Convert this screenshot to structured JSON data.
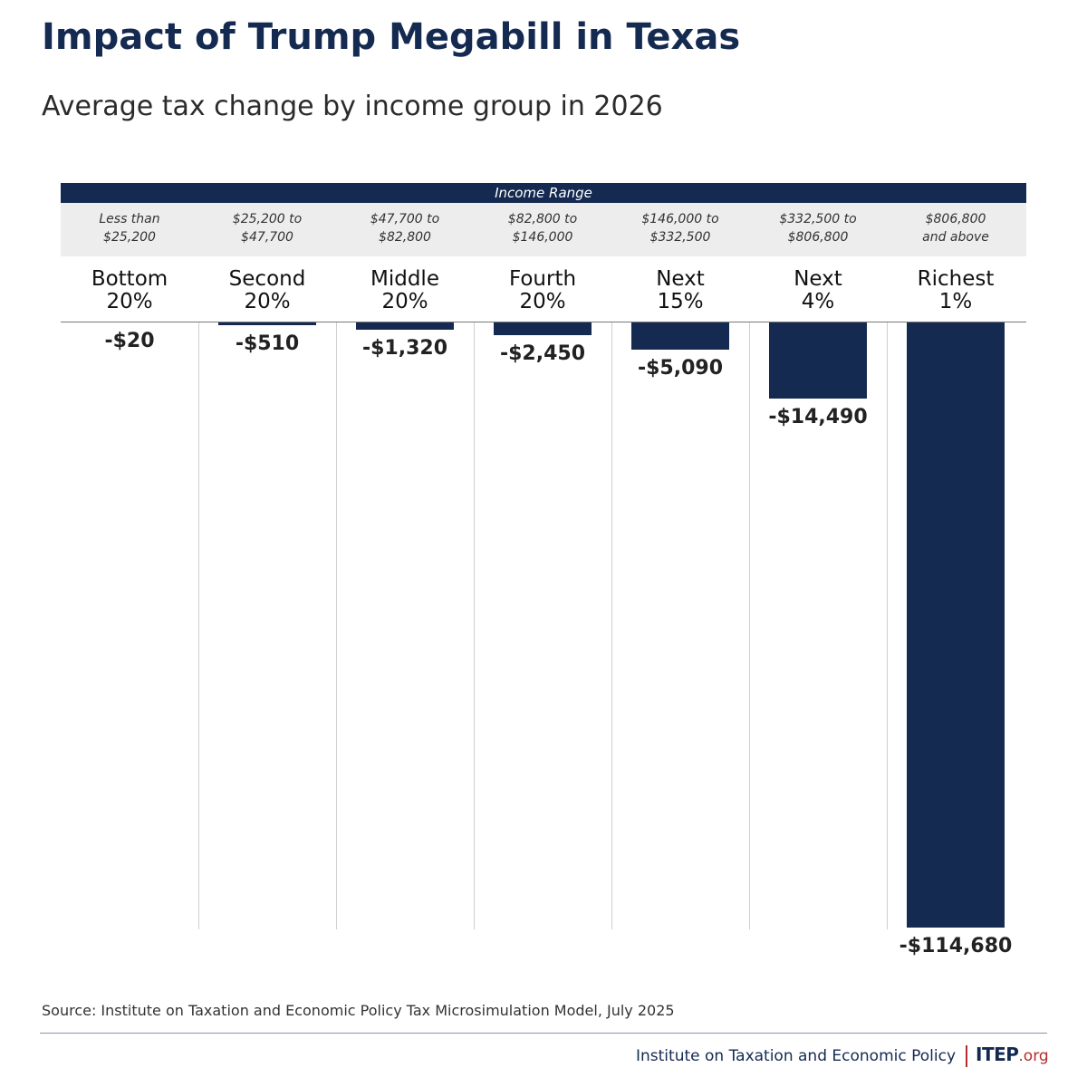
{
  "title": "Impact of Trump Megabill in Texas",
  "subtitle": "Average tax change by income group in 2026",
  "range_header": "Income Range",
  "chart_data": {
    "type": "bar",
    "title": "Impact of Trump Megabill in Texas",
    "subtitle": "Average tax change by income group in 2026",
    "categories": [
      [
        "Bottom",
        "20%"
      ],
      [
        "Second",
        "20%"
      ],
      [
        "Middle",
        "20%"
      ],
      [
        "Fourth",
        "20%"
      ],
      [
        "Next",
        "15%"
      ],
      [
        "Next",
        "4%"
      ],
      [
        "Richest",
        "1%"
      ]
    ],
    "income_ranges": [
      [
        "Less than",
        "$25,200"
      ],
      [
        "$25,200 to",
        "$47,700"
      ],
      [
        "$47,700 to",
        "$82,800"
      ],
      [
        "$82,800 to",
        "$146,000"
      ],
      [
        "$146,000 to",
        "$332,500"
      ],
      [
        "$332,500 to",
        "$806,800"
      ],
      [
        "$806,800",
        "and above"
      ]
    ],
    "values": [
      -20,
      -510,
      -1320,
      -2450,
      -5090,
      -14490,
      -114680
    ],
    "value_labels": [
      "-$20",
      "-$510",
      "-$1,320",
      "-$2,450",
      "-$5,090",
      "-$14,490",
      "-$114,680"
    ],
    "ylim": [
      -114680,
      0
    ],
    "grid": false,
    "orientation": "downward from zero baseline"
  },
  "source": "Source: Institute on Taxation and Economic Policy Tax Microsimulation Model, July 2025",
  "footer": {
    "org_name": "Institute on Taxation and Economic Policy",
    "logo_main": "ITEP",
    "logo_tld": ".org"
  },
  "colors": {
    "bar": "#142a50",
    "title": "#142a50",
    "range_row_background": "#ededed",
    "accent": "#b32d2e"
  }
}
